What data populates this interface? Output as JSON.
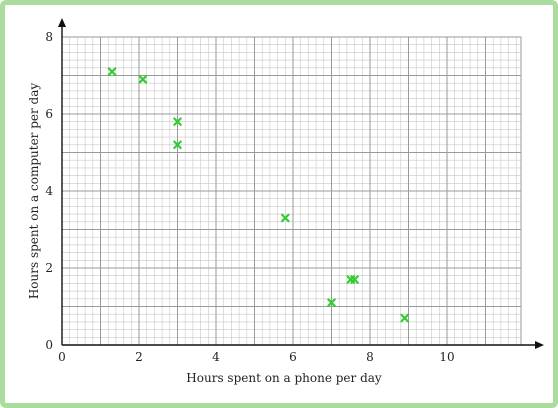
{
  "chart_data": {
    "type": "scatter",
    "title": "",
    "xlabel": "Hours spent on a phone per day",
    "ylabel": "Hours spent on a computer per day",
    "xlim": [
      0,
      12
    ],
    "ylim": [
      0,
      8
    ],
    "x_ticks": [
      0,
      2,
      4,
      6,
      8,
      10
    ],
    "y_ticks": [
      0,
      2,
      4,
      6,
      8
    ],
    "grid": true,
    "marker": "x",
    "series": [
      {
        "points": [
          {
            "x": 1.3,
            "y": 7.1
          },
          {
            "x": 2.1,
            "y": 6.9
          },
          {
            "x": 3.0,
            "y": 5.8
          },
          {
            "x": 3.0,
            "y": 5.2
          },
          {
            "x": 5.8,
            "y": 3.3
          },
          {
            "x": 7.0,
            "y": 1.1
          },
          {
            "x": 7.5,
            "y": 1.7
          },
          {
            "x": 7.6,
            "y": 1.7
          },
          {
            "x": 8.9,
            "y": 0.7
          }
        ]
      }
    ],
    "colors": {
      "marker": "#33cc33",
      "grid_minor": "#c8c8c8",
      "grid_major": "#9a9a9a",
      "axis": "#111111",
      "frame": "#a9dc9d"
    }
  }
}
